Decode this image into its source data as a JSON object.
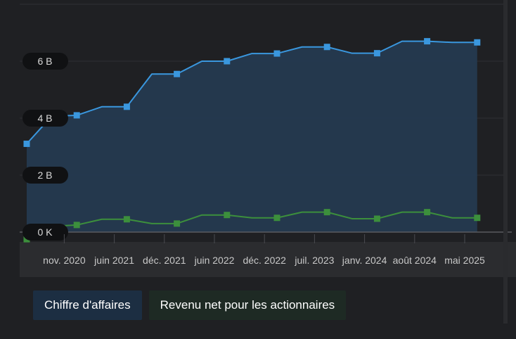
{
  "chart_data": {
    "type": "area",
    "y_axis": {
      "ticks": [
        {
          "value": 0,
          "label": "0 K"
        },
        {
          "value": 2,
          "label": "2 B"
        },
        {
          "value": 4,
          "label": "4 B"
        },
        {
          "value": 6,
          "label": "6 B"
        }
      ],
      "ylim": [
        0,
        7.7
      ],
      "unit": "B"
    },
    "x_axis": {
      "xlim": [
        0,
        18.6
      ],
      "tick_labels": [
        {
          "x": 1.5,
          "label": "nov. 2020"
        },
        {
          "x": 3.5,
          "label": "juin 2021"
        },
        {
          "x": 5.5,
          "label": "déc. 2021"
        },
        {
          "x": 7.5,
          "label": "juin 2022"
        },
        {
          "x": 9.5,
          "label": "déc. 2022"
        },
        {
          "x": 11.5,
          "label": "juil. 2023"
        },
        {
          "x": 13.5,
          "label": "janv. 2024"
        },
        {
          "x": 15.5,
          "label": "août 2024"
        },
        {
          "x": 17.5,
          "label": "mai 2025"
        }
      ]
    },
    "series": [
      {
        "name": "Chiffre d'affaires",
        "color": "#3a97de",
        "fill": "#253a50",
        "points": [
          {
            "x": 0,
            "y": 3.1
          },
          {
            "x": 1,
            "y": 4.07,
            "marker": false
          },
          {
            "x": 2,
            "y": 4.1
          },
          {
            "x": 3,
            "y": 4.4,
            "marker": false
          },
          {
            "x": 4,
            "y": 4.4
          },
          {
            "x": 5,
            "y": 5.55,
            "marker": false
          },
          {
            "x": 6,
            "y": 5.55
          },
          {
            "x": 7,
            "y": 6.0,
            "marker": false
          },
          {
            "x": 8,
            "y": 6.0
          },
          {
            "x": 9,
            "y": 6.27,
            "marker": false
          },
          {
            "x": 10,
            "y": 6.27
          },
          {
            "x": 11,
            "y": 6.5,
            "marker": false
          },
          {
            "x": 12,
            "y": 6.5
          },
          {
            "x": 13,
            "y": 6.28,
            "marker": false
          },
          {
            "x": 14,
            "y": 6.28
          },
          {
            "x": 15,
            "y": 6.7,
            "marker": false
          },
          {
            "x": 16,
            "y": 6.7
          },
          {
            "x": 17,
            "y": 6.66,
            "marker": false
          },
          {
            "x": 18,
            "y": 6.66
          }
        ]
      },
      {
        "name": "Revenu net pour les actionnaires",
        "color": "#3c8f3c",
        "fill": "none",
        "points": [
          {
            "x": 0,
            "y": -0.25
          },
          {
            "x": 1,
            "y": 0.2,
            "marker": false
          },
          {
            "x": 2,
            "y": 0.25
          },
          {
            "x": 3,
            "y": 0.45,
            "marker": false
          },
          {
            "x": 4,
            "y": 0.45
          },
          {
            "x": 5,
            "y": 0.3,
            "marker": false
          },
          {
            "x": 6,
            "y": 0.3
          },
          {
            "x": 7,
            "y": 0.6,
            "marker": false
          },
          {
            "x": 8,
            "y": 0.6
          },
          {
            "x": 9,
            "y": 0.5,
            "marker": false
          },
          {
            "x": 10,
            "y": 0.5
          },
          {
            "x": 11,
            "y": 0.7,
            "marker": false
          },
          {
            "x": 12,
            "y": 0.7
          },
          {
            "x": 13,
            "y": 0.47,
            "marker": false
          },
          {
            "x": 14,
            "y": 0.47
          },
          {
            "x": 15,
            "y": 0.7,
            "marker": false
          },
          {
            "x": 16,
            "y": 0.7
          },
          {
            "x": 17,
            "y": 0.5,
            "marker": false
          },
          {
            "x": 18,
            "y": 0.5
          }
        ]
      }
    ],
    "legend": [
      "Chiffre d'affaires",
      "Revenu net pour les actionnaires"
    ],
    "legend_position": "bottom-left",
    "grid": true
  },
  "legend": {
    "revenue_label": "Chiffre d'affaires",
    "net_income_label": "Revenu net pour les actionnaires"
  }
}
